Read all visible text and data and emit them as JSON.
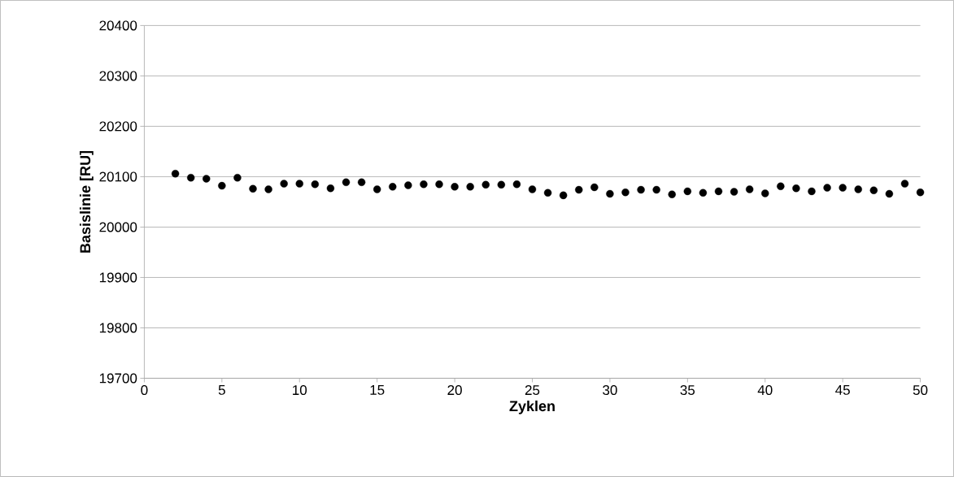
{
  "chart_data": {
    "type": "scatter",
    "xlabel": "Zyklen",
    "ylabel": "Basislinie [RU]",
    "x": [
      2,
      3,
      4,
      5,
      6,
      7,
      8,
      9,
      10,
      11,
      12,
      13,
      14,
      15,
      16,
      17,
      18,
      19,
      20,
      21,
      22,
      23,
      24,
      25,
      26,
      27,
      28,
      29,
      30,
      31,
      32,
      33,
      34,
      35,
      36,
      37,
      38,
      39,
      40,
      41,
      42,
      43,
      44,
      45,
      46,
      47,
      48,
      49,
      50
    ],
    "series": [
      {
        "color": "#000000",
        "values": [
          20106,
          20098,
          20096,
          20082,
          20098,
          20076,
          20075,
          20086,
          20086,
          20085,
          20077,
          20089,
          20089,
          20075,
          20080,
          20083,
          20085,
          20085,
          20080,
          20080,
          20084,
          20084,
          20085,
          20075,
          20068,
          20063,
          20074,
          20079,
          20066,
          20069,
          20074,
          20074,
          20065,
          20071,
          20068,
          20071,
          20070,
          20075,
          20067,
          20081,
          20077,
          20071,
          20078,
          20078,
          20075,
          20073,
          20066,
          20086,
          20069
        ]
      }
    ],
    "xlim": [
      0,
      50
    ],
    "ylim": [
      19700,
      20400
    ],
    "xticks": [
      0,
      5,
      10,
      15,
      20,
      25,
      30,
      35,
      40,
      45,
      50
    ],
    "yticks": [
      19700,
      19800,
      19900,
      20000,
      20100,
      20200,
      20300,
      20400
    ],
    "grid": "y",
    "marker": "circle"
  }
}
